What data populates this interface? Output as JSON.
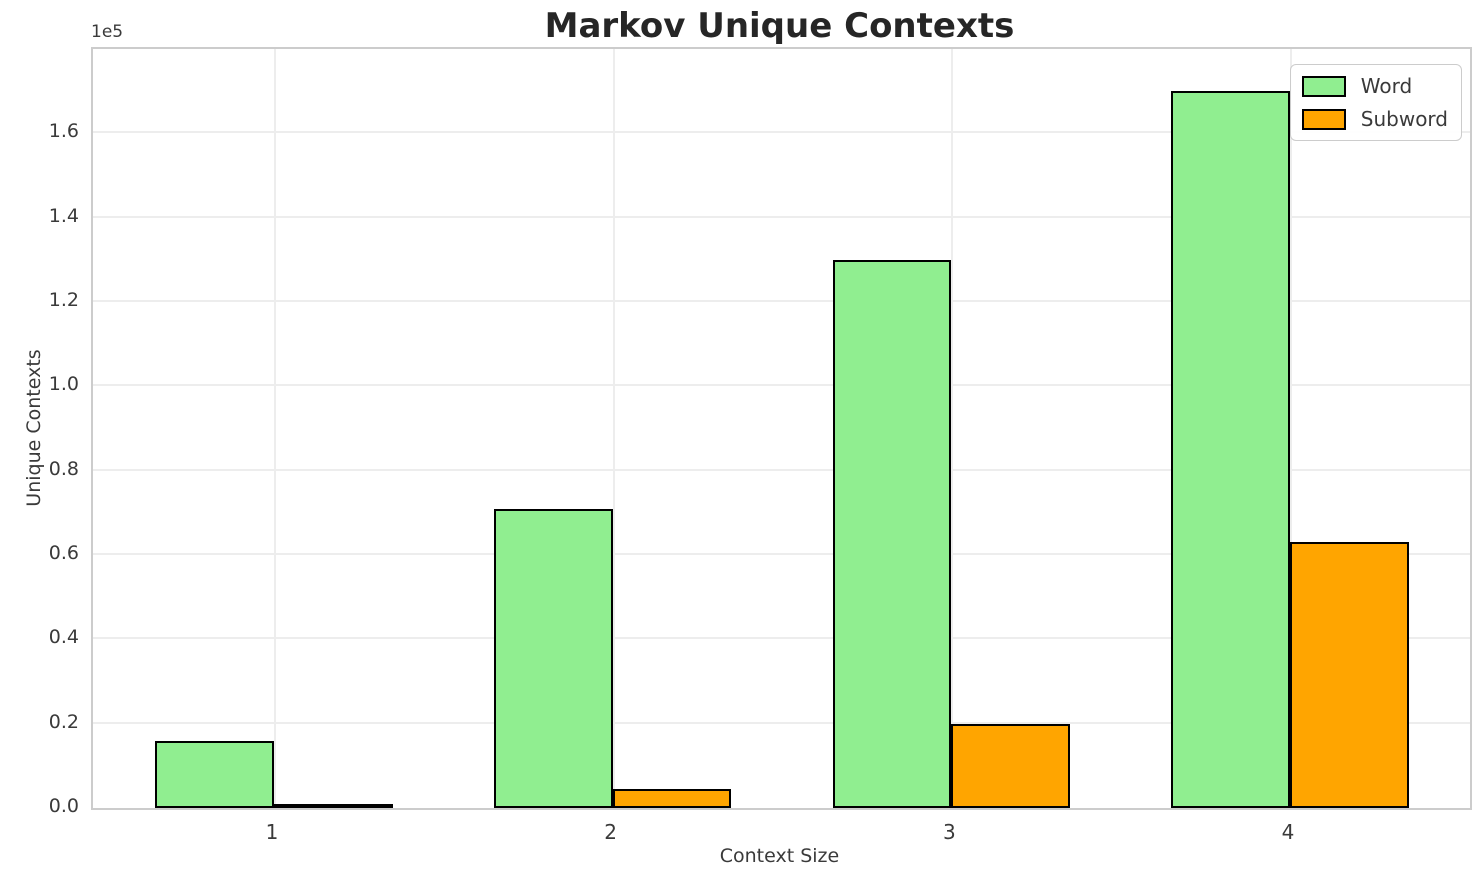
{
  "chart_data": {
    "type": "bar",
    "title": "Markov Unique Contexts",
    "xlabel": "Context Size",
    "ylabel": "Unique Contexts",
    "offset_text": "1e5",
    "categories": [
      "1",
      "2",
      "3",
      "4"
    ],
    "series": [
      {
        "name": "Word",
        "color": "#90EE90",
        "values": [
          16000,
          71000,
          130000,
          170000
        ]
      },
      {
        "name": "Subword",
        "color": "#FFA500",
        "values": [
          700,
          4500,
          20000,
          63000
        ]
      }
    ],
    "bar_edge_color": "#000000",
    "bar_width_data_units": 0.35,
    "ylim": [
      0,
      180000
    ],
    "xlim": [
      0.4655,
      4.5315
    ],
    "yticks": [
      0,
      20000,
      40000,
      60000,
      80000,
      100000,
      120000,
      140000,
      160000
    ],
    "ytick_labels": [
      "0.0",
      "0.2",
      "0.4",
      "0.6",
      "0.8",
      "1.0",
      "1.2",
      "1.4",
      "1.6"
    ],
    "grid": true,
    "legend_position": "upper right"
  }
}
